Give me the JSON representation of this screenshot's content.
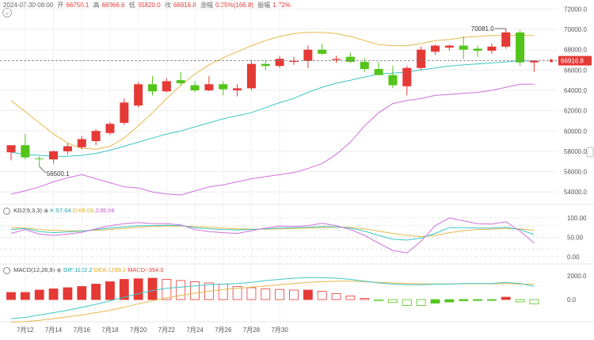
{
  "header": {
    "datetime": "2024-07-30 08:00",
    "open_label": "开",
    "open": "66750.1",
    "high_label": "高",
    "high": "66966.6",
    "low_label": "低",
    "low": "65820.0",
    "close_label": "收",
    "close": "66916.8",
    "change_label": "涨幅",
    "change": "0.25%(166.8)",
    "amp_label": "振幅",
    "amp": "1.72%"
  },
  "kdj": {
    "title": "KDJ(9,3,3)",
    "k": "K:57.04",
    "d": "D:68.03",
    "j": "J:35.06"
  },
  "macd": {
    "title": "MACD(12,26,9)",
    "dif": "DIF:1122.2",
    "dea": "DEA:1299.2",
    "macd": "MACD:-354.0"
  },
  "colors": {
    "up": "#e53935",
    "down": "#52c41a",
    "ma": "#e6b84a",
    "mid": "#3cc6c6",
    "lower": "#d070d8"
  },
  "chart_data": {
    "type": "candlestick",
    "price_axis": [
      "72000.0",
      "70000.0",
      "68000.0",
      "66000.0",
      "64000.0",
      "62000.0",
      "60000.0",
      "58000.0",
      "56000.0",
      "54000.0"
    ],
    "ylim": [
      53000,
      72500
    ],
    "current_price": "66916.8",
    "annotations": {
      "max": "70081.0",
      "min": "56500.1"
    },
    "x_labels": [
      "7月12",
      "7月14",
      "7月16",
      "7月18",
      "7月20",
      "7月22",
      "7月24",
      "7月26",
      "7月28",
      "7月30"
    ],
    "x_label_index": [
      1,
      3,
      5,
      7,
      9,
      11,
      13,
      15,
      17,
      19
    ],
    "candles": [
      {
        "o": 57900,
        "h": 58600,
        "l": 57100,
        "c": 58600
      },
      {
        "o": 58600,
        "h": 59700,
        "l": 57200,
        "c": 57400
      },
      {
        "o": 57300,
        "h": 57500,
        "l": 56500,
        "c": 57250
      },
      {
        "o": 57200,
        "h": 58100,
        "l": 56800,
        "c": 58000
      },
      {
        "o": 58000,
        "h": 58800,
        "l": 57700,
        "c": 58500
      },
      {
        "o": 58400,
        "h": 59500,
        "l": 58200,
        "c": 59200
      },
      {
        "o": 59000,
        "h": 60200,
        "l": 58600,
        "c": 60000
      },
      {
        "o": 59800,
        "h": 60900,
        "l": 59600,
        "c": 60700
      },
      {
        "o": 60800,
        "h": 63200,
        "l": 60600,
        "c": 62800
      },
      {
        "o": 62500,
        "h": 64800,
        "l": 62300,
        "c": 64600
      },
      {
        "o": 64600,
        "h": 65400,
        "l": 63500,
        "c": 63900
      },
      {
        "o": 63900,
        "h": 65200,
        "l": 63800,
        "c": 64900
      },
      {
        "o": 65000,
        "h": 65800,
        "l": 64500,
        "c": 64700
      },
      {
        "o": 64500,
        "h": 64900,
        "l": 63800,
        "c": 64000
      },
      {
        "o": 64000,
        "h": 65400,
        "l": 63900,
        "c": 64600
      },
      {
        "o": 64600,
        "h": 64900,
        "l": 63500,
        "c": 64100
      },
      {
        "o": 64000,
        "h": 64600,
        "l": 63400,
        "c": 64200
      },
      {
        "o": 64200,
        "h": 67000,
        "l": 64000,
        "c": 66600
      },
      {
        "o": 66600,
        "h": 67000,
        "l": 66000,
        "c": 66400
      },
      {
        "o": 66400,
        "h": 67400,
        "l": 66200,
        "c": 67100
      },
      {
        "o": 66800,
        "h": 67300,
        "l": 66500,
        "c": 66900
      },
      {
        "o": 66900,
        "h": 68400,
        "l": 66200,
        "c": 68000
      },
      {
        "o": 68000,
        "h": 68600,
        "l": 67500,
        "c": 67600
      },
      {
        "o": 67000,
        "h": 67400,
        "l": 66700,
        "c": 67100
      },
      {
        "o": 67300,
        "h": 67700,
        "l": 66700,
        "c": 66800
      },
      {
        "o": 66800,
        "h": 67200,
        "l": 65800,
        "c": 66100
      },
      {
        "o": 66100,
        "h": 66800,
        "l": 65600,
        "c": 65500
      },
      {
        "o": 65500,
        "h": 66400,
        "l": 64200,
        "c": 64500
      },
      {
        "o": 64400,
        "h": 66400,
        "l": 63500,
        "c": 66200
      },
      {
        "o": 66200,
        "h": 68300,
        "l": 66000,
        "c": 68000
      },
      {
        "o": 67800,
        "h": 68500,
        "l": 67500,
        "c": 68400
      },
      {
        "o": 68200,
        "h": 68500,
        "l": 67900,
        "c": 68400
      },
      {
        "o": 68400,
        "h": 69300,
        "l": 67100,
        "c": 68000
      },
      {
        "o": 68100,
        "h": 68400,
        "l": 67300,
        "c": 67900
      },
      {
        "o": 67900,
        "h": 68600,
        "l": 67600,
        "c": 68300
      },
      {
        "o": 68300,
        "h": 70081,
        "l": 68100,
        "c": 69700
      },
      {
        "o": 69700,
        "h": 69900,
        "l": 66400,
        "c": 66750
      },
      {
        "o": 66750,
        "h": 66966,
        "l": 65820,
        "c": 66916
      }
    ],
    "ma_upper": [
      63000,
      61900,
      60800,
      59700,
      58800,
      58300,
      58200,
      58500,
      59300,
      60500,
      61800,
      63200,
      64500,
      65600,
      66500,
      67200,
      67800,
      68400,
      68900,
      69300,
      69600,
      69700,
      69700,
      69600,
      69300,
      68900,
      68500,
      68400,
      68400,
      68600,
      68900,
      69000,
      69200,
      69300,
      69400,
      69400,
      69400,
      69400
    ],
    "ma_mid": [
      57900,
      57700,
      57600,
      57500,
      57500,
      57600,
      57800,
      58100,
      58500,
      58900,
      59300,
      59700,
      60000,
      60400,
      60800,
      61200,
      61500,
      61800,
      62300,
      62800,
      63200,
      63800,
      64300,
      64700,
      65000,
      65300,
      65600,
      65700,
      65800,
      66000,
      66200,
      66400,
      66500,
      66600,
      66700,
      66800,
      66900,
      66900
    ],
    "ma_lower": [
      53800,
      54100,
      54500,
      55000,
      55400,
      55700,
      55300,
      54900,
      54500,
      54400,
      54000,
      53800,
      53700,
      54100,
      54500,
      54700,
      55000,
      55300,
      55500,
      55700,
      55900,
      56300,
      56800,
      57700,
      58900,
      60500,
      61800,
      62700,
      63000,
      63200,
      63500,
      63600,
      63700,
      63800,
      64000,
      64300,
      64600,
      64600
    ],
    "kdj_axis": [
      "100.00",
      "50.00",
      "0.00"
    ],
    "kdj_k": [
      70,
      73,
      65,
      62,
      64,
      66,
      70,
      74,
      77,
      80,
      80,
      81,
      80,
      75,
      72,
      70,
      69,
      70,
      72,
      74,
      75,
      76,
      78,
      77,
      74,
      66,
      55,
      45,
      43,
      48,
      60,
      75,
      75,
      74,
      74,
      76,
      70,
      57
    ],
    "kdj_d": [
      75,
      74,
      70,
      68,
      67,
      67,
      68,
      70,
      73,
      76,
      78,
      79,
      79,
      78,
      76,
      74,
      72,
      71,
      71,
      72,
      73,
      74,
      75,
      76,
      76,
      72,
      66,
      60,
      55,
      52,
      55,
      62,
      67,
      70,
      71,
      73,
      72,
      68
    ],
    "kdj_j": [
      60,
      70,
      58,
      55,
      58,
      63,
      72,
      80,
      85,
      88,
      85,
      85,
      82,
      70,
      65,
      62,
      60,
      67,
      74,
      79,
      78,
      80,
      86,
      80,
      70,
      55,
      35,
      16,
      10,
      40,
      80,
      100,
      92,
      85,
      84,
      90,
      66,
      35
    ],
    "macd_axis": [
      "2000.0",
      "0.0"
    ],
    "dif": [
      -1600,
      -1500,
      -1300,
      -1100,
      -900,
      -650,
      -400,
      -100,
      200,
      500,
      750,
      950,
      1050,
      1150,
      1250,
      1300,
      1350,
      1450,
      1600,
      1700,
      1800,
      1850,
      1850,
      1800,
      1700,
      1550,
      1400,
      1300,
      1250,
      1250,
      1300,
      1300,
      1350,
      1350,
      1350,
      1450,
      1350,
      1122
    ],
    "dea": [
      -1900,
      -1850,
      -1750,
      -1600,
      -1450,
      -1300,
      -1100,
      -900,
      -650,
      -350,
      -100,
      150,
      350,
      550,
      700,
      850,
      950,
      1050,
      1150,
      1250,
      1350,
      1450,
      1500,
      1550,
      1550,
      1500,
      1450,
      1400,
      1350,
      1330,
      1320,
      1320,
      1330,
      1330,
      1330,
      1350,
      1300,
      1299
    ],
    "macd_hist": [
      600,
      600,
      800,
      900,
      1000,
      1100,
      1300,
      1500,
      1700,
      1750,
      1800,
      1700,
      1600,
      1500,
      1400,
      1300,
      1100,
      1000,
      900,
      850,
      800,
      800,
      700,
      500,
      300,
      100,
      -100,
      -250,
      -500,
      -500,
      -300,
      -200,
      -100,
      -80,
      -50,
      200,
      -200,
      -354
    ]
  }
}
